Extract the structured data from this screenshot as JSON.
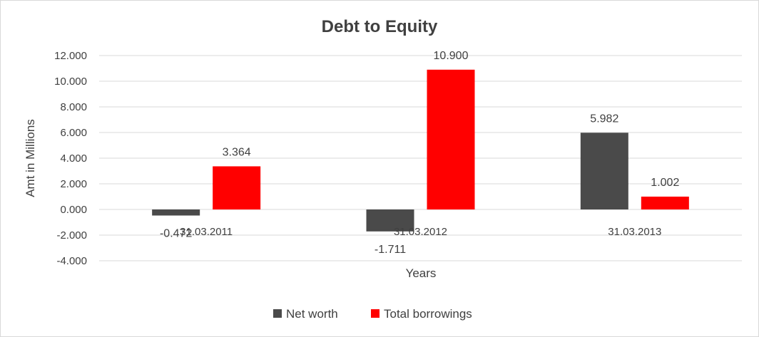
{
  "chart_data": {
    "type": "bar",
    "title": "Debt to Equity",
    "xlabel": "Years",
    "ylabel": "Amt in Millions",
    "categories": [
      "31.03.2011",
      "31.03.2012",
      "31.03.2013"
    ],
    "ylim": [
      -4,
      12
    ],
    "yticks": [
      12,
      10,
      8,
      6,
      4,
      2,
      0,
      -2,
      -4
    ],
    "ytick_labels": [
      "12.000",
      "10.000",
      "8.000",
      "6.000",
      "4.000",
      "2.000",
      "0.000",
      "-2.000",
      "-4.000"
    ],
    "grid": true,
    "legend_position": "bottom",
    "series": [
      {
        "name": "Net worth",
        "color": "#4a4a4a",
        "values": [
          -0.472,
          -1.711,
          5.982
        ],
        "labels": [
          "-0.472",
          "-1.711",
          "5.982"
        ]
      },
      {
        "name": "Total borrowings",
        "color": "#ff0000",
        "values": [
          3.364,
          10.9,
          1.002
        ],
        "labels": [
          "3.364",
          "10.900",
          "1.002"
        ]
      }
    ]
  }
}
